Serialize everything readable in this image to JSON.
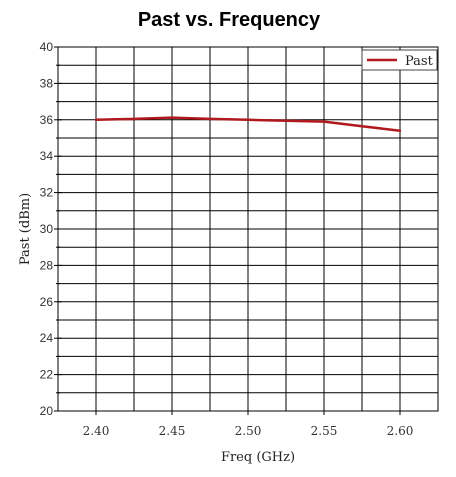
{
  "chart_data": {
    "type": "line",
    "title": "Past vs. Frequency",
    "xlabel": "Freq (GHz)",
    "ylabel": "Past (dBm)",
    "x_ticks": [
      "2.40",
      "2.45",
      "2.50",
      "2.55",
      "2.60"
    ],
    "y_ticks": [
      "20",
      "22",
      "24",
      "26",
      "28",
      "30",
      "32",
      "34",
      "36",
      "38",
      "40"
    ],
    "xlim": [
      2.375,
      2.625
    ],
    "ylim": [
      20,
      40
    ],
    "grid": true,
    "legend_position": "top-right",
    "series": [
      {
        "name": "Past",
        "color": "#b0191e",
        "x": [
          2.4,
          2.425,
          2.45,
          2.475,
          2.5,
          2.525,
          2.55,
          2.575,
          2.6
        ],
        "y": [
          36.0,
          36.05,
          36.12,
          36.05,
          36.0,
          35.95,
          35.9,
          35.65,
          35.4
        ]
      }
    ]
  }
}
